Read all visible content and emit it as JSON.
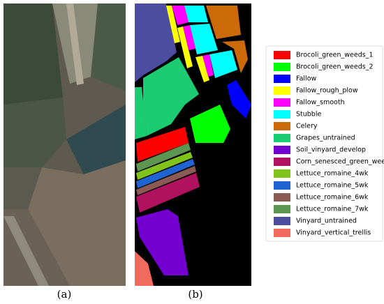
{
  "panels": {
    "a": "(a)",
    "b": "(b)"
  },
  "legend": [
    {
      "name": "Brocoli_green_weeds_1",
      "color": "#ff0000"
    },
    {
      "name": "Brocoli_green_weeds_2",
      "color": "#00ff00"
    },
    {
      "name": "Fallow",
      "color": "#0000ff"
    },
    {
      "name": "Fallow_rough_plow",
      "color": "#ffff00"
    },
    {
      "name": "Fallow_smooth",
      "color": "#ff00ff"
    },
    {
      "name": "Stubble",
      "color": "#00ffff"
    },
    {
      "name": "Celery",
      "color": "#cc6a0a"
    },
    {
      "name": "Grapes_untrained",
      "color": "#1bcc73"
    },
    {
      "name": "Soil_vinyard_develop",
      "color": "#7300d0"
    },
    {
      "name": "Corn_senesced_green_weeds",
      "color": "#b0125f"
    },
    {
      "name": "Lettuce_romaine_4wk",
      "color": "#7fc31b"
    },
    {
      "name": "Lettuce_romaine_5wk",
      "color": "#1f64d0"
    },
    {
      "name": "Lettuce_romaine_6wk",
      "color": "#8b5a55"
    },
    {
      "name": "Lettuce_romaine_7wk",
      "color": "#5c9650"
    },
    {
      "name": "Vinyard_untrained",
      "color": "#4c4ca0"
    },
    {
      "name": "Vinyard_vertical_trellis",
      "color": "#f06b5e"
    }
  ]
}
